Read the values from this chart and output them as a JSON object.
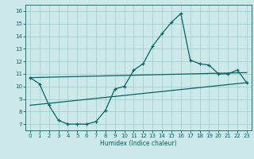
{
  "title": "",
  "xlabel": "Humidex (Indice chaleur)",
  "background_color": "#cce8e8",
  "grid_color": "#99cccc",
  "line_color": "#006666",
  "xlim": [
    -0.5,
    23.5
  ],
  "ylim": [
    6.5,
    16.5
  ],
  "xticks": [
    0,
    1,
    2,
    3,
    4,
    5,
    6,
    7,
    8,
    9,
    10,
    11,
    12,
    13,
    14,
    15,
    16,
    17,
    18,
    19,
    20,
    21,
    22,
    23
  ],
  "yticks": [
    7,
    8,
    9,
    10,
    11,
    12,
    13,
    14,
    15,
    16
  ],
  "main_x": [
    0,
    1,
    2,
    3,
    4,
    5,
    6,
    7,
    8,
    9,
    10,
    11,
    12,
    13,
    14,
    15,
    16,
    17,
    18,
    19,
    20,
    21,
    22,
    23
  ],
  "main_y": [
    10.7,
    10.2,
    8.5,
    7.3,
    7.0,
    7.0,
    7.0,
    7.2,
    8.1,
    9.8,
    10.0,
    11.3,
    11.8,
    13.2,
    14.2,
    15.1,
    15.8,
    12.1,
    11.8,
    11.7,
    11.0,
    11.0,
    11.3,
    10.3
  ],
  "line1_x": [
    0,
    23
  ],
  "line1_y": [
    10.7,
    11.1
  ],
  "line2_x": [
    0,
    23
  ],
  "line2_y": [
    8.5,
    10.3
  ]
}
